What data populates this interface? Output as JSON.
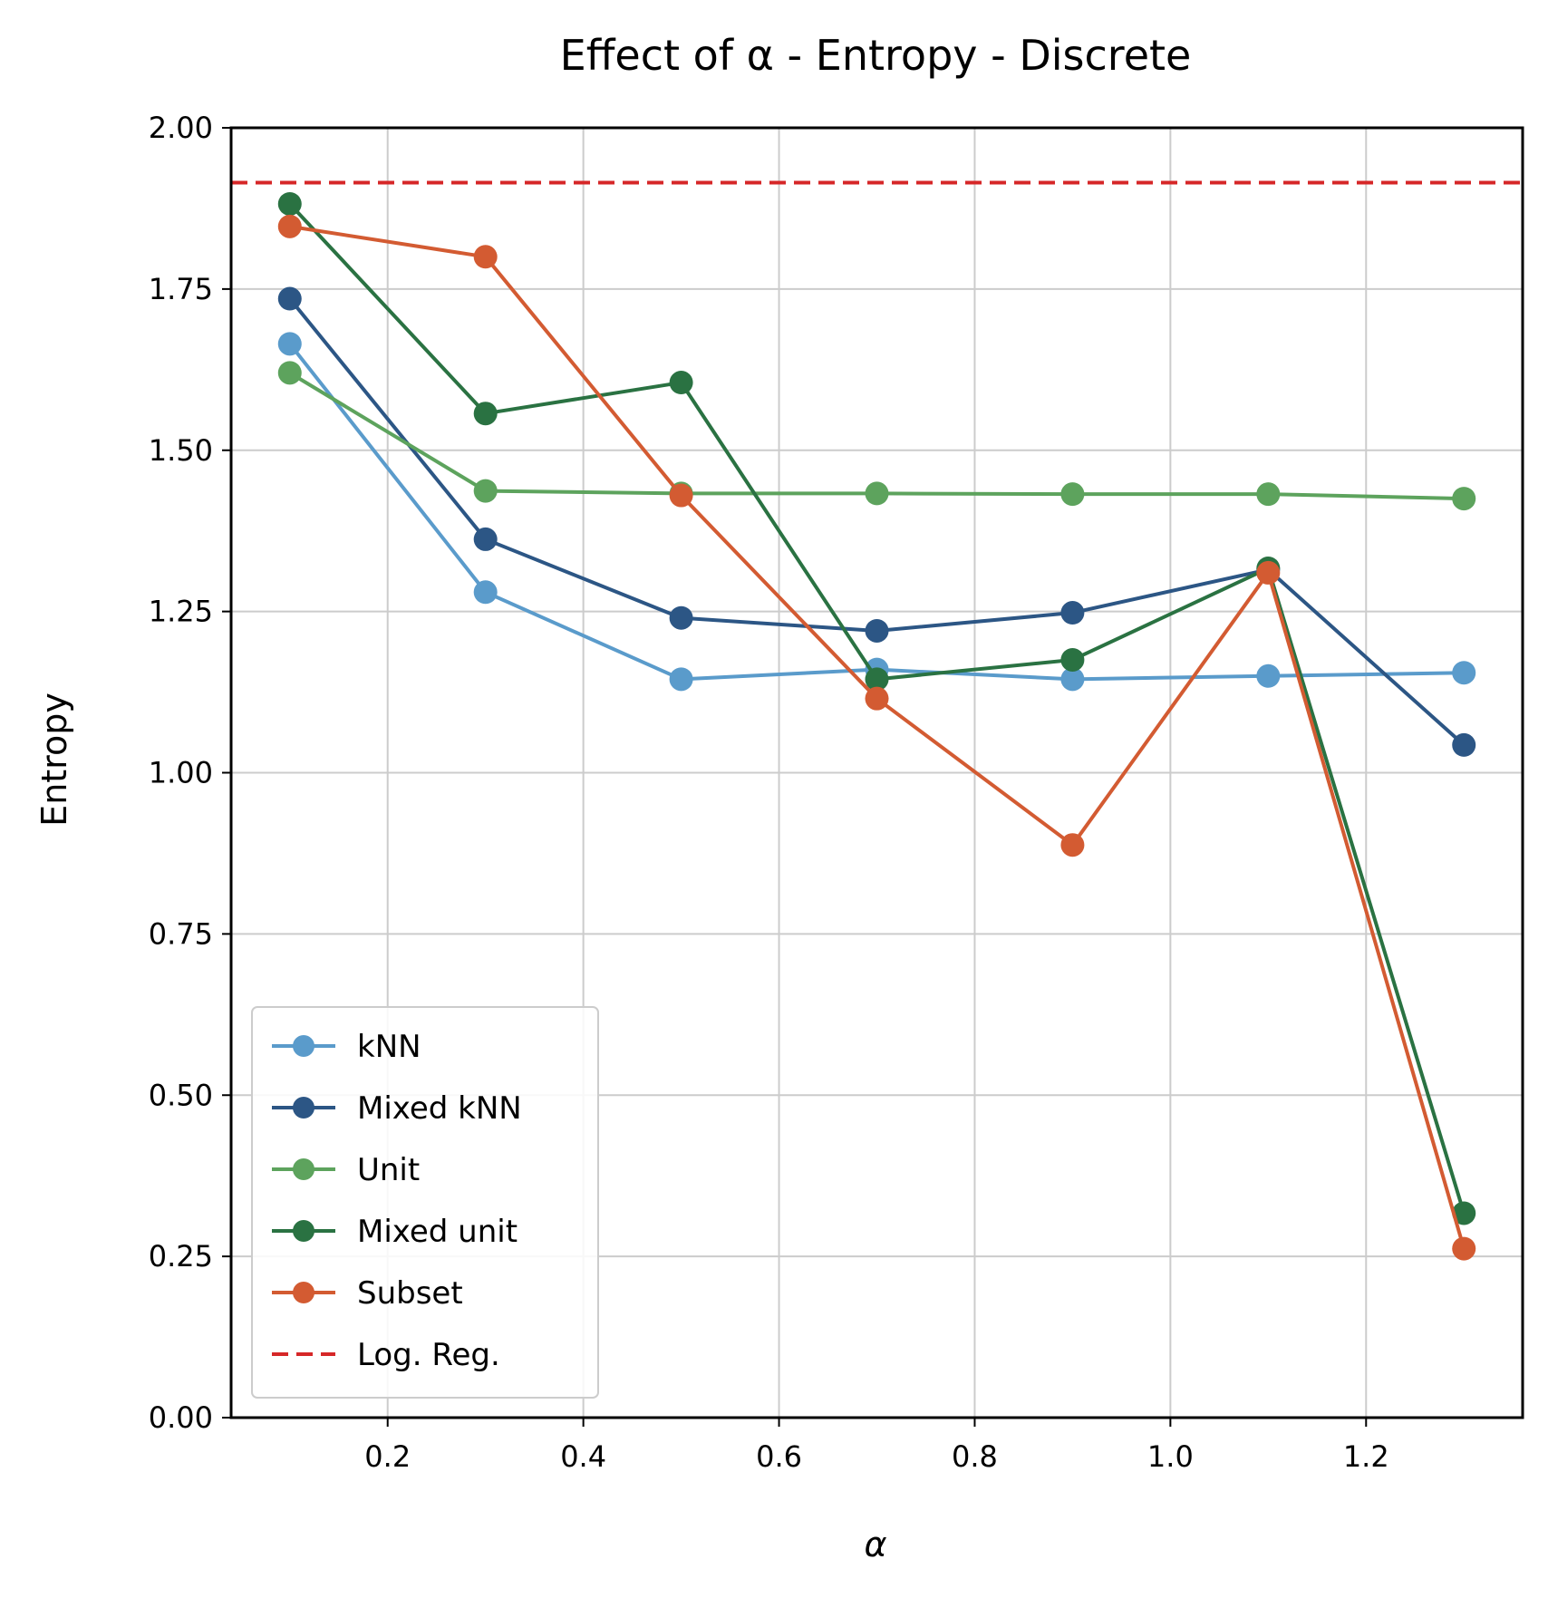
{
  "chart_data": {
    "type": "line",
    "title": "Effect of α - Entropy - Discrete",
    "xlabel": "α",
    "ylabel": "Entropy",
    "xlim": [
      0.04,
      1.36
    ],
    "ylim": [
      0.0,
      2.0
    ],
    "x_ticks": [
      0.2,
      0.4,
      0.6,
      0.8,
      1.0,
      1.2
    ],
    "x_tick_labels": [
      "0.2",
      "0.4",
      "0.6",
      "0.8",
      "1.0",
      "1.2"
    ],
    "y_ticks": [
      0.0,
      0.25,
      0.5,
      0.75,
      1.0,
      1.25,
      1.5,
      1.75,
      2.0
    ],
    "y_tick_labels": [
      "0.00",
      "0.25",
      "0.50",
      "0.75",
      "1.00",
      "1.25",
      "1.50",
      "1.75",
      "2.00"
    ],
    "grid": true,
    "legend_position": "lower-left",
    "x": [
      0.1,
      0.3,
      0.5,
      0.7,
      0.9,
      1.1,
      1.3
    ],
    "series": [
      {
        "name": "kNN",
        "color": "#5a9bcb",
        "values": [
          1.665,
          1.28,
          1.145,
          1.16,
          1.145,
          1.15,
          1.155
        ]
      },
      {
        "name": "Mixed kNN",
        "color": "#2c5685",
        "values": [
          1.735,
          1.362,
          1.24,
          1.22,
          1.248,
          1.315,
          1.043
        ]
      },
      {
        "name": "Unit",
        "color": "#5da35d",
        "values": [
          1.62,
          1.437,
          1.433,
          1.433,
          1.432,
          1.432,
          1.425
        ]
      },
      {
        "name": "Mixed unit",
        "color": "#2a7242",
        "values": [
          1.882,
          1.557,
          1.605,
          1.145,
          1.175,
          1.317,
          0.317
        ]
      },
      {
        "name": "Subset",
        "color": "#d35b32",
        "values": [
          1.847,
          1.8,
          1.43,
          1.115,
          0.888,
          1.31,
          0.262
        ]
      }
    ],
    "reference_lines": [
      {
        "name": "Log. Reg.",
        "color": "#d62728",
        "style": "dashed",
        "value": 1.915
      }
    ]
  }
}
